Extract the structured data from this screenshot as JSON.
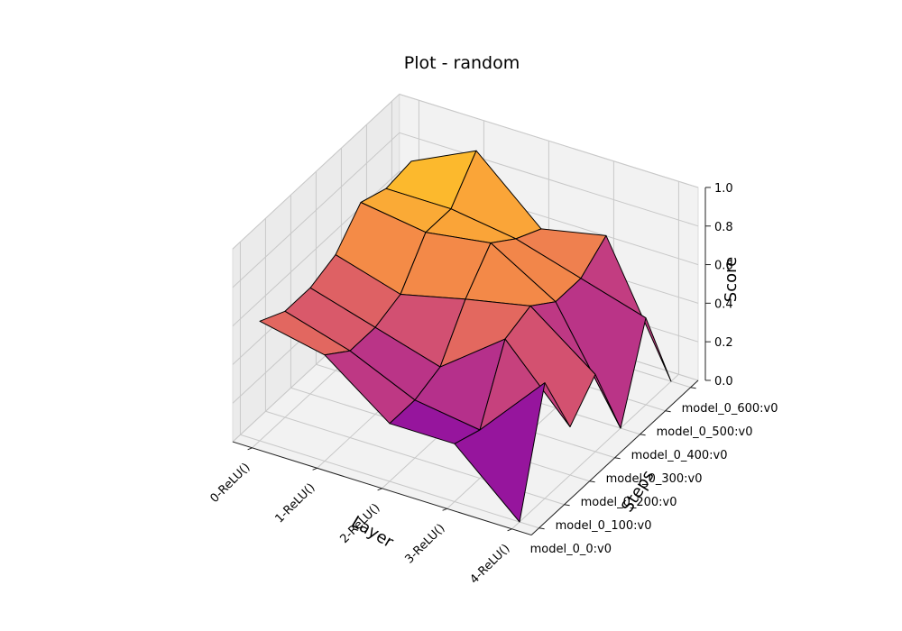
{
  "chart_data": {
    "type": "surface3d",
    "title": "Plot - random",
    "xlabel": "Layer",
    "ylabel": "Steps",
    "zlabel": "Score",
    "x_categories": [
      "0-ReLU()",
      "1-ReLU()",
      "2-ReLU()",
      "3-ReLU()",
      "4-ReLU()"
    ],
    "y_categories": [
      "model_0_0:v0",
      "model_0_100:v0",
      "model_0_200:v0",
      "model_0_300:v0",
      "model_0_400:v0",
      "model_0_500:v0",
      "model_0_600:v0"
    ],
    "z_ticks": [
      "0.0",
      "0.2",
      "0.4",
      "0.6",
      "0.8",
      "1.0"
    ],
    "zlim": [
      0,
      1
    ],
    "colormap": "plasma",
    "grid": true,
    "z": [
      [
        0.62,
        0.55,
        0.3,
        0.3,
        0.0
      ],
      [
        0.55,
        0.45,
        0.3,
        0.25,
        0.6
      ],
      [
        0.55,
        0.45,
        0.35,
        0.6,
        0.25
      ],
      [
        0.6,
        0.5,
        0.58,
        0.65,
        0.4
      ],
      [
        0.75,
        0.7,
        0.75,
        0.55,
        0.0
      ],
      [
        0.7,
        0.7,
        0.65,
        0.55,
        0.45
      ],
      [
        0.72,
        0.88,
        0.58,
        0.65,
        0.0
      ]
    ]
  }
}
